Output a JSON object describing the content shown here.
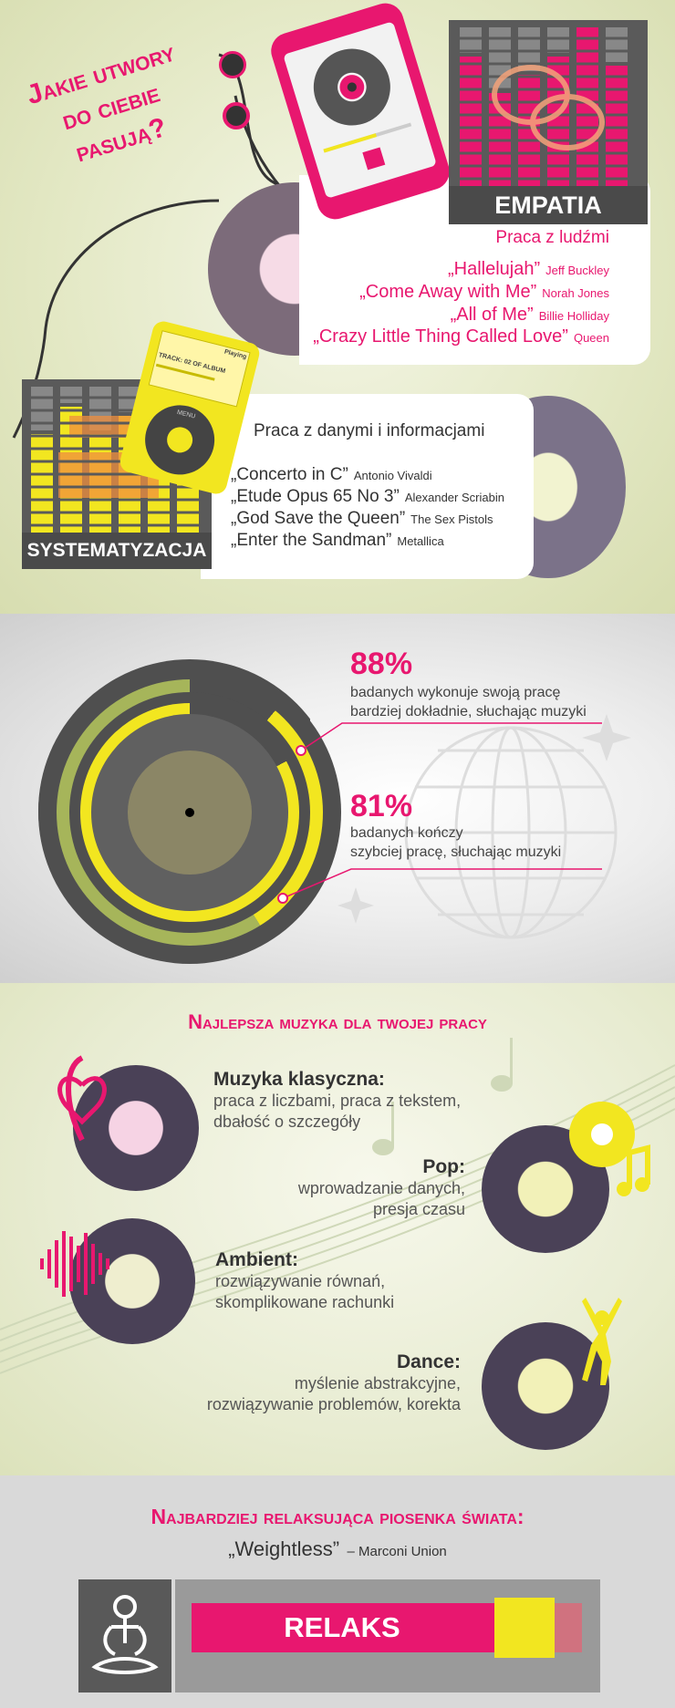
{
  "colors": {
    "pink": "#e8176f",
    "yellow": "#f2e620",
    "dark": "#4a4a4a",
    "grey": "#666666"
  },
  "header": {
    "title_line1": "Jakie utwory",
    "title_line2": "do ciebie",
    "title_line3": "pasują?"
  },
  "empatia": {
    "label": "EMPATIA",
    "subtitle": "Praca z ludźmi",
    "songs": [
      {
        "title": "„Hallelujah”",
        "artist": "Jeff Buckley"
      },
      {
        "title": "„Come Away with Me”",
        "artist": "Norah Jones"
      },
      {
        "title": "„All of Me”",
        "artist": "Billie Holliday"
      },
      {
        "title": "„Crazy Little Thing Called Love”",
        "artist": "Queen"
      }
    ]
  },
  "player": {
    "status": "Playing",
    "track": "TRACK: 02 OF ALBUM",
    "menu": "MENU"
  },
  "systematyzacja": {
    "label": "SYSTEMATYZACJA",
    "subtitle": "Praca z danymi i informacjami",
    "songs": [
      {
        "title": "„Concerto in C”",
        "artist": "Antonio Vivaldi"
      },
      {
        "title": "„Etude Opus 65 No 3”",
        "artist": "Alexander Scriabin"
      },
      {
        "title": "„God Save the Queen”",
        "artist": "The Sex Pistols"
      },
      {
        "title": "„Enter the Sandman”",
        "artist": "Metallica"
      }
    ]
  },
  "stats": [
    {
      "value": "88%",
      "line1": "badanych wykonuje swoją pracę",
      "line2": "bardziej dokładnie, słuchając muzyki"
    },
    {
      "value": "81%",
      "line1": "badanych kończy",
      "line2": "szybciej pracę, słuchając muzyki"
    }
  ],
  "best": {
    "title": "Najlepsza muzyka dla twojej pracy",
    "genres": [
      {
        "name": "Muzyka klasyczna:",
        "line1": "praca z liczbami, praca z tekstem,",
        "line2": "dbałość o szczegóły"
      },
      {
        "name": "Pop:",
        "line1": "wprowadzanie danych,",
        "line2": "presja czasu"
      },
      {
        "name": "Ambient:",
        "line1": "rozwiązywanie równań,",
        "line2": "skomplikowane rachunki"
      },
      {
        "name": "Dance:",
        "line1": "myślenie abstrakcyjne,",
        "line2": "rozwiązywanie problemów, korekta"
      }
    ]
  },
  "relax": {
    "title": "Najbardziej relaksująca piosenka świata:",
    "song": "„Weightless”",
    "artist": "– Marconi Union",
    "bar_label": "RELAKS",
    "level": 0.88
  }
}
